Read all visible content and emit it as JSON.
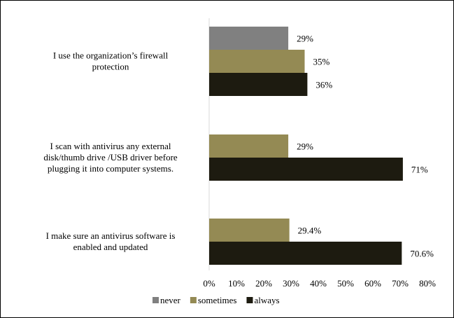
{
  "chart_data": {
    "type": "bar",
    "orientation": "horizontal",
    "title": "",
    "xlabel": "",
    "ylabel": "",
    "xlim": [
      0,
      80
    ],
    "x_ticks": [
      "0%",
      "10%",
      "20%",
      "30%",
      "40%",
      "50%",
      "60%",
      "70%",
      "80%"
    ],
    "grid": false,
    "legend_position": "bottom",
    "categories": [
      {
        "lines": [
          "I use the organization’s firewall",
          "protection"
        ],
        "bars": [
          {
            "series": "never",
            "value": 29,
            "label": "29%"
          },
          {
            "series": "sometimes",
            "value": 35,
            "label": "35%"
          },
          {
            "series": "always",
            "value": 36,
            "label": "36%"
          }
        ]
      },
      {
        "lines": [
          "I scan with antivirus any external",
          "disk/thumb drive /USB driver before",
          "plugging it into computer systems."
        ],
        "bars": [
          {
            "series": "sometimes",
            "value": 29,
            "label": "29%"
          },
          {
            "series": "always",
            "value": 71,
            "label": "71%"
          }
        ]
      },
      {
        "lines": [
          "I make sure an  antivirus software is",
          "enabled and updated"
        ],
        "bars": [
          {
            "series": "sometimes",
            "value": 29.4,
            "label": "29.4%"
          },
          {
            "series": "always",
            "value": 70.6,
            "label": "70.6%"
          }
        ]
      }
    ],
    "series": [
      {
        "name": "never",
        "color": "#808080"
      },
      {
        "name": "sometimes",
        "color": "#948a54"
      },
      {
        "name": "always",
        "color": "#1d1b10"
      }
    ]
  }
}
